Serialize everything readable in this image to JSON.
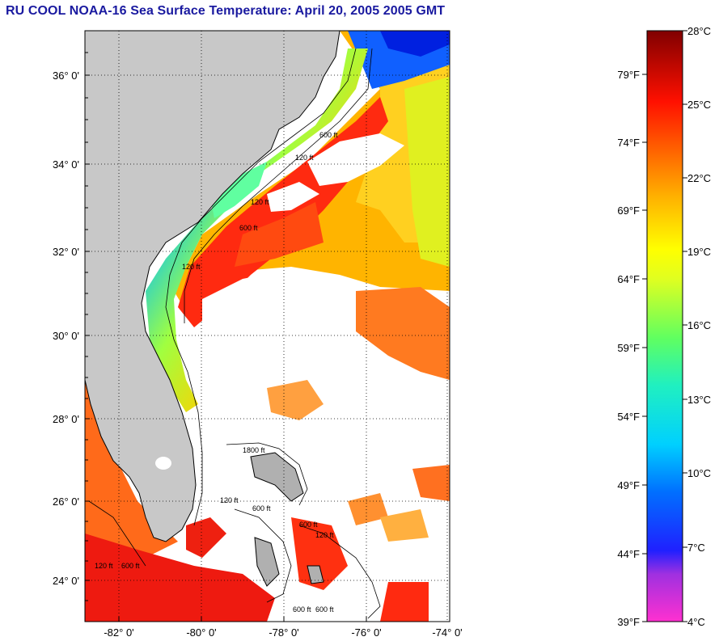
{
  "title": "RU COOL  NOAA-16  Sea Surface Temperature:  April 20, 2005 2005 GMT",
  "map": {
    "lat_labels": [
      "36° 0'",
      "34° 0'",
      "32° 0'",
      "30° 0'",
      "28° 0'",
      "26° 0'",
      "24° 0'"
    ],
    "lon_labels": [
      "-82° 0'",
      "-80° 0'",
      "-78° 0'",
      "-76° 0'",
      "-74° 0'"
    ],
    "isobath_labels": [
      "120 ft",
      "600 ft",
      "120 ft",
      "600 ft",
      "120 ft",
      "120 ft",
      "1800 ft",
      "120 ft",
      "600 ft",
      "600 ft",
      "600 ft",
      "120 ft",
      "600 ft",
      "600 ft"
    ],
    "colors": {
      "land": "#c8c8c8",
      "cloud": "#ffffff",
      "coast": "#000000"
    }
  },
  "colorbar": {
    "celsius_labels": [
      "28°C",
      "25°C",
      "22°C",
      "19°C",
      "16°C",
      "13°C",
      "10°C",
      "7°C",
      "4°C"
    ],
    "fahrenheit_labels": [
      "79°F",
      "74°F",
      "69°F",
      "64°F",
      "59°F",
      "54°F",
      "49°F",
      "44°F",
      "39°F"
    ]
  }
}
